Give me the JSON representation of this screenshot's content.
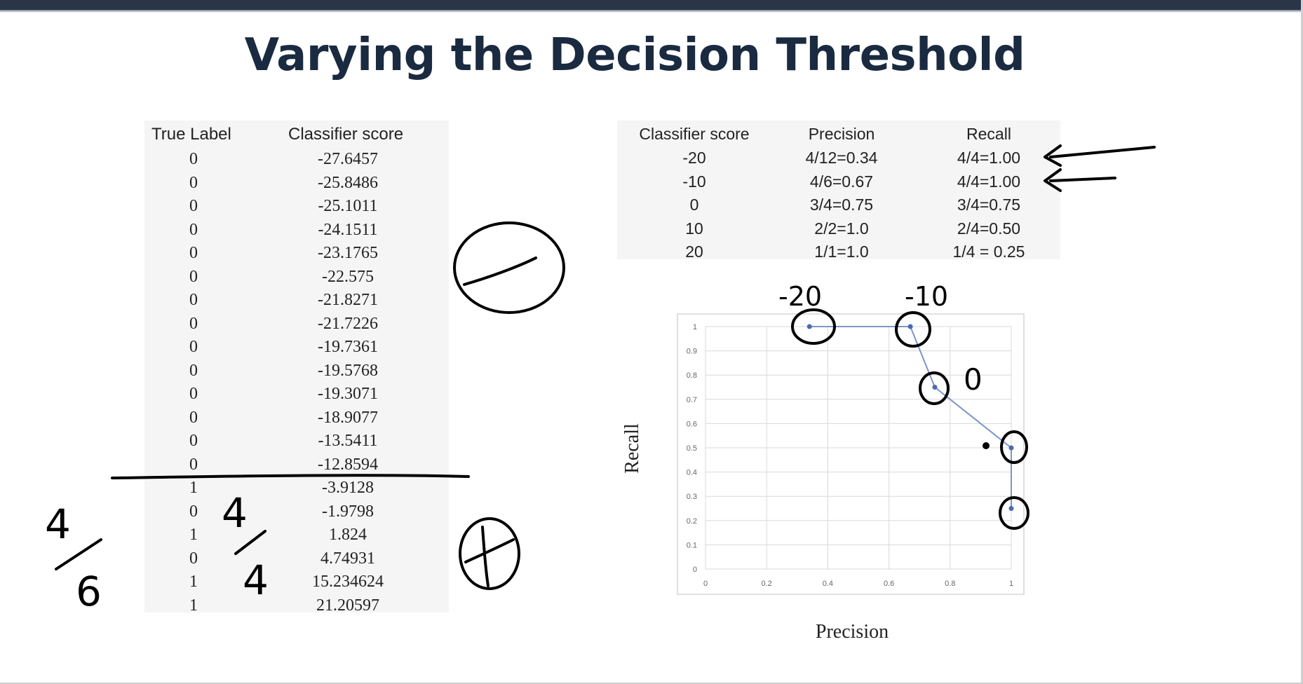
{
  "slide": {
    "title": "Varying the Decision Threshold"
  },
  "score_table": {
    "headers": [
      "True Label",
      "Classifier score"
    ],
    "rows": [
      [
        "0",
        "-27.6457"
      ],
      [
        "0",
        "-25.8486"
      ],
      [
        "0",
        "-25.1011"
      ],
      [
        "0",
        "-24.1511"
      ],
      [
        "0",
        "-23.1765"
      ],
      [
        "0",
        "-22.575"
      ],
      [
        "0",
        "-21.8271"
      ],
      [
        "0",
        "-21.7226"
      ],
      [
        "0",
        "-19.7361"
      ],
      [
        "0",
        "-19.5768"
      ],
      [
        "0",
        "-19.3071"
      ],
      [
        "0",
        "-18.9077"
      ],
      [
        "0",
        "-13.5411"
      ],
      [
        "0",
        "-12.8594"
      ],
      [
        "1",
        "-3.9128"
      ],
      [
        "0",
        "-1.9798"
      ],
      [
        "1",
        "1.824"
      ],
      [
        "0",
        "4.74931"
      ],
      [
        "1",
        "15.234624"
      ],
      [
        "1",
        "21.20597"
      ]
    ]
  },
  "metrics_table": {
    "headers": [
      "Classifier score",
      "Precision",
      "Recall"
    ],
    "rows": [
      [
        "-20",
        "4/12=0.34",
        "4/4=1.00"
      ],
      [
        "-10",
        "4/6=0.67",
        "4/4=1.00"
      ],
      [
        "0",
        "3/4=0.75",
        "3/4=0.75"
      ],
      [
        "10",
        "2/2=1.0",
        "2/4=0.50"
      ],
      [
        "20",
        "1/1=1.0",
        "1/4 = 0.25"
      ]
    ]
  },
  "annotations": {
    "label_neg20": "-20",
    "label_neg10": "-10",
    "label_zero": "0",
    "fraction_a_num": "4",
    "fraction_a_den": "6",
    "fraction_b_num": "4",
    "fraction_b_den": "4"
  },
  "chart_data": {
    "type": "line",
    "title": "",
    "xlabel": "Precision",
    "ylabel": "Recall",
    "xlim": [
      0,
      1
    ],
    "ylim": [
      0,
      1
    ],
    "x_ticks": [
      "0",
      "0.2",
      "0.4",
      "0.6",
      "0.8",
      "1"
    ],
    "y_ticks": [
      "0",
      "0.1",
      "0.2",
      "0.3",
      "0.4",
      "0.5",
      "0.6",
      "0.7",
      "0.8",
      "0.9",
      "1"
    ],
    "grid": true,
    "series": [
      {
        "x": [
          0.34,
          0.67,
          0.75,
          1.0,
          1.0
        ],
        "y": [
          1.0,
          1.0,
          0.75,
          0.5,
          0.25
        ]
      }
    ],
    "line_color": "#7d95c9",
    "marker_color": "#4a6bb0"
  },
  "colors": {
    "title": "#1a2a40",
    "ink": "#000000",
    "table_bg": "#f5f5f5"
  }
}
